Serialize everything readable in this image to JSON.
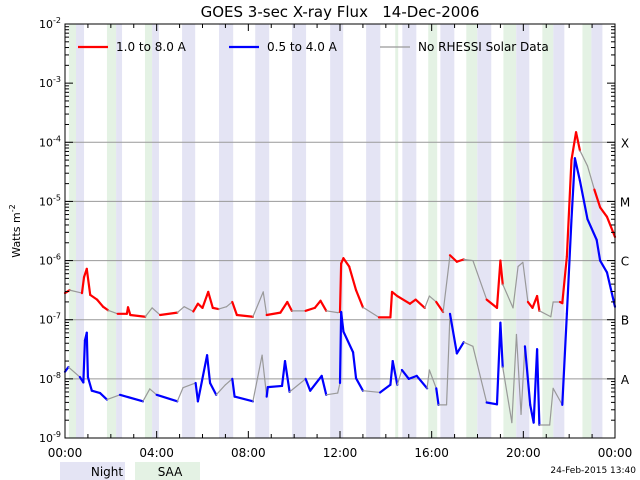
{
  "chart_data": {
    "type": "line",
    "title": "GOES 3-sec X-ray Flux   14-Dec-2006",
    "ylabel": "Watts m",
    "ylabel_sup": "-2",
    "yscale": "log",
    "ylim_exp": [
      -9,
      -2
    ],
    "y_ticks": [
      {
        "base": "10",
        "exp": "-2",
        "v": -2
      },
      {
        "base": "10",
        "exp": "-3",
        "v": -3
      },
      {
        "base": "10",
        "exp": "-4",
        "v": -4
      },
      {
        "base": "10",
        "exp": "-5",
        "v": -5
      },
      {
        "base": "10",
        "exp": "-6",
        "v": -6
      },
      {
        "base": "10",
        "exp": "-7",
        "v": -7
      },
      {
        "base": "10",
        "exp": "-8",
        "v": -8
      },
      {
        "base": "10",
        "exp": "-9",
        "v": -9
      }
    ],
    "xlim_hours": [
      0,
      24
    ],
    "x_ticks": [
      {
        "label": "00:00",
        "h": 0
      },
      {
        "label": "04:00",
        "h": 4
      },
      {
        "label": "08:00",
        "h": 8
      },
      {
        "label": "12:00",
        "h": 12
      },
      {
        "label": "16:00",
        "h": 16
      },
      {
        "label": "20:00",
        "h": 20
      },
      {
        "label": "00:00",
        "h": 24
      }
    ],
    "class_labels": [
      {
        "label": "X",
        "v": -4
      },
      {
        "label": "M",
        "v": -5
      },
      {
        "label": "C",
        "v": -6
      },
      {
        "label": "B",
        "v": -7
      },
      {
        "label": "A",
        "v": -8
      }
    ],
    "legend": [
      {
        "label": "1.0 to 8.0 A",
        "color": "#ff0000"
      },
      {
        "label": "0.5 to 4.0 A",
        "color": "#0000ff"
      },
      {
        "label": "No RHESSI Solar Data",
        "color": "#999999"
      }
    ],
    "legend_placement": "top",
    "no_data_color": "#999999",
    "series": [
      {
        "name": "1.0 to 8.0 A",
        "color": "#ff0000",
        "points_hour_log10_colored": [
          [
            0,
            -6.55,
            1
          ],
          [
            0.2,
            -6.5,
            0
          ],
          [
            0.74,
            -6.55,
            1
          ],
          [
            0.83,
            -6.28,
            1
          ],
          [
            0.95,
            -6.14,
            1
          ],
          [
            1.1,
            -6.58,
            1
          ],
          [
            1.4,
            -6.66,
            1
          ],
          [
            1.66,
            -6.78,
            1
          ],
          [
            1.88,
            -6.84,
            0
          ],
          [
            2.3,
            -6.9,
            1
          ],
          [
            2.7,
            -6.9,
            1
          ],
          [
            2.75,
            -6.79,
            1
          ],
          [
            2.85,
            -6.92,
            1
          ],
          [
            3.5,
            -6.95,
            0
          ],
          [
            3.8,
            -6.8,
            0
          ],
          [
            4.15,
            -6.92,
            1
          ],
          [
            4.9,
            -6.88,
            0
          ],
          [
            5.2,
            -6.78,
            0
          ],
          [
            5.6,
            -6.86,
            1
          ],
          [
            5.8,
            -6.73,
            1
          ],
          [
            6.0,
            -6.8,
            1
          ],
          [
            6.25,
            -6.53,
            1
          ],
          [
            6.45,
            -6.8,
            1
          ],
          [
            6.7,
            -6.82,
            0
          ],
          [
            7.05,
            -6.78,
            0
          ],
          [
            7.3,
            -6.7,
            1
          ],
          [
            7.5,
            -6.92,
            1
          ],
          [
            8.2,
            -6.95,
            0
          ],
          [
            8.65,
            -6.53,
            0
          ],
          [
            8.8,
            -6.92,
            1
          ],
          [
            9.4,
            -6.88,
            1
          ],
          [
            9.7,
            -6.7,
            1
          ],
          [
            9.9,
            -6.85,
            0
          ],
          [
            10.5,
            -6.85,
            1
          ],
          [
            10.9,
            -6.8,
            1
          ],
          [
            11.15,
            -6.68,
            1
          ],
          [
            11.4,
            -6.85,
            0
          ],
          [
            11.9,
            -6.88,
            0
          ],
          [
            12.0,
            -6.87,
            1
          ],
          [
            12.05,
            -6.05,
            1
          ],
          [
            12.15,
            -5.96,
            1
          ],
          [
            12.4,
            -6.1,
            1
          ],
          [
            12.7,
            -6.5,
            1
          ],
          [
            13.0,
            -6.79,
            0
          ],
          [
            13.7,
            -6.96,
            1
          ],
          [
            14.2,
            -6.96,
            1
          ],
          [
            14.27,
            -6.53,
            1
          ],
          [
            14.5,
            -6.6,
            1
          ],
          [
            15.05,
            -6.73,
            1
          ],
          [
            15.3,
            -6.66,
            1
          ],
          [
            15.7,
            -6.8,
            0
          ],
          [
            15.9,
            -6.6,
            0
          ],
          [
            16.2,
            -6.7,
            1
          ],
          [
            16.5,
            -6.87,
            0
          ],
          [
            16.8,
            -5.91,
            1
          ],
          [
            17.1,
            -6.02,
            1
          ],
          [
            17.4,
            -5.98,
            0
          ],
          [
            17.8,
            -6.0,
            0
          ],
          [
            18.4,
            -6.66,
            1
          ],
          [
            18.85,
            -6.8,
            1
          ],
          [
            19.0,
            -6.0,
            1
          ],
          [
            19.1,
            -6.4,
            0
          ],
          [
            19.55,
            -6.8,
            0
          ],
          [
            19.77,
            -6.1,
            0
          ],
          [
            19.98,
            -6.03,
            0
          ],
          [
            20.2,
            -6.7,
            1
          ],
          [
            20.4,
            -6.8,
            1
          ],
          [
            20.6,
            -6.6,
            1
          ],
          [
            20.7,
            -6.85,
            0
          ],
          [
            21.2,
            -6.95,
            0
          ],
          [
            21.3,
            -6.7,
            0
          ],
          [
            21.6,
            -6.7,
            1
          ],
          [
            21.7,
            -6.72,
            1
          ],
          [
            21.9,
            -5.93,
            1
          ],
          [
            22.1,
            -4.3,
            1
          ],
          [
            22.3,
            -3.83,
            1
          ],
          [
            22.47,
            -4.14,
            0
          ],
          [
            22.8,
            -4.4,
            0
          ],
          [
            23.1,
            -4.8,
            1
          ],
          [
            23.35,
            -5.1,
            1
          ],
          [
            23.65,
            -5.26,
            1
          ],
          [
            24,
            -5.6,
            1
          ]
        ]
      },
      {
        "name": "0.5 to 4.0 A",
        "color": "#0000ff",
        "points_hour_log10_colored": [
          [
            0,
            -7.88,
            1
          ],
          [
            0.15,
            -7.8,
            0
          ],
          [
            0.65,
            -7.97,
            1
          ],
          [
            0.8,
            -8.06,
            1
          ],
          [
            0.87,
            -7.35,
            1
          ],
          [
            0.95,
            -7.22,
            1
          ],
          [
            1.0,
            -7.97,
            1
          ],
          [
            1.17,
            -8.2,
            1
          ],
          [
            1.53,
            -8.24,
            1
          ],
          [
            1.83,
            -8.35,
            0
          ],
          [
            2.4,
            -8.27,
            1
          ],
          [
            3.4,
            -8.38,
            0
          ],
          [
            3.7,
            -8.17,
            0
          ],
          [
            4.0,
            -8.27,
            1
          ],
          [
            4.9,
            -8.38,
            0
          ],
          [
            5.15,
            -8.15,
            0
          ],
          [
            5.7,
            -8.07,
            1
          ],
          [
            5.8,
            -8.38,
            1
          ],
          [
            6.2,
            -7.6,
            1
          ],
          [
            6.33,
            -8.07,
            1
          ],
          [
            6.6,
            -8.27,
            0
          ],
          [
            7.0,
            -8.1,
            0
          ],
          [
            7.3,
            -8.0,
            1
          ],
          [
            7.4,
            -8.3,
            1
          ],
          [
            8.2,
            -8.38,
            0
          ],
          [
            8.6,
            -7.6,
            0
          ],
          [
            8.8,
            -8.3,
            1
          ],
          [
            8.85,
            -8.14,
            1
          ],
          [
            9.47,
            -8.12,
            1
          ],
          [
            9.6,
            -7.7,
            1
          ],
          [
            9.8,
            -8.22,
            0
          ],
          [
            10.5,
            -8.0,
            1
          ],
          [
            10.7,
            -8.2,
            1
          ],
          [
            11.2,
            -7.95,
            1
          ],
          [
            11.4,
            -8.27,
            0
          ],
          [
            11.9,
            -8.24,
            0
          ],
          [
            12.0,
            -8.07,
            1
          ],
          [
            12.05,
            -6.87,
            1
          ],
          [
            12.15,
            -7.2,
            1
          ],
          [
            12.57,
            -7.55,
            1
          ],
          [
            12.7,
            -7.99,
            1
          ],
          [
            13.0,
            -8.2,
            0
          ],
          [
            13.75,
            -8.23,
            1
          ],
          [
            14.2,
            -8.1,
            1
          ],
          [
            14.3,
            -7.7,
            1
          ],
          [
            14.5,
            -8.1,
            0
          ],
          [
            14.7,
            -7.85,
            1
          ],
          [
            15.0,
            -8.0,
            1
          ],
          [
            15.35,
            -7.95,
            1
          ],
          [
            15.8,
            -8.16,
            0
          ],
          [
            15.9,
            -7.85,
            0
          ],
          [
            16.2,
            -8.16,
            1
          ],
          [
            16.3,
            -8.44,
            0
          ],
          [
            16.65,
            -8.44,
            0
          ],
          [
            16.8,
            -6.9,
            1
          ],
          [
            17.1,
            -7.57,
            1
          ],
          [
            17.4,
            -7.38,
            0
          ],
          [
            17.8,
            -7.45,
            0
          ],
          [
            18.4,
            -8.4,
            1
          ],
          [
            18.85,
            -8.43,
            1
          ],
          [
            19.0,
            -7.05,
            1
          ],
          [
            19.1,
            -7.8,
            0
          ],
          [
            19.5,
            -8.74,
            0
          ],
          [
            19.7,
            -7.25,
            0
          ],
          [
            19.9,
            -8.6,
            0
          ],
          [
            20.07,
            -7.45,
            1
          ],
          [
            20.3,
            -8.44,
            1
          ],
          [
            20.45,
            -8.74,
            1
          ],
          [
            20.6,
            -7.5,
            1
          ],
          [
            20.7,
            -8.78,
            0
          ],
          [
            21.15,
            -8.78,
            0
          ],
          [
            21.3,
            -8.16,
            0
          ],
          [
            21.7,
            -8.44,
            1
          ],
          [
            21.9,
            -6.9,
            1
          ],
          [
            22.1,
            -5.31,
            1
          ],
          [
            22.25,
            -4.27,
            1
          ],
          [
            22.47,
            -4.65,
            1
          ],
          [
            22.8,
            -5.3,
            1
          ],
          [
            23.2,
            -5.65,
            1
          ],
          [
            23.35,
            -6.0,
            1
          ],
          [
            23.65,
            -6.2,
            1
          ],
          [
            24,
            -6.78,
            1
          ]
        ]
      }
    ],
    "bands": {
      "night": {
        "label": "Night",
        "color": "#e4e4f4",
        "hours": [
          [
            0.48,
            0.83
          ],
          [
            2.23,
            2.49
          ],
          [
            3.8,
            4.1
          ],
          [
            5.11,
            5.68
          ],
          [
            6.72,
            7.34
          ],
          [
            8.3,
            8.91
          ],
          [
            9.91,
            10.52
          ],
          [
            11.57,
            12.14
          ],
          [
            13.14,
            13.76
          ],
          [
            14.72,
            15.33
          ],
          [
            16.38,
            16.99
          ],
          [
            17.99,
            18.6
          ],
          [
            19.69,
            20.26
          ],
          [
            21.31,
            21.79
          ],
          [
            22.97,
            23.45
          ]
        ]
      },
      "saa": {
        "label": "SAA",
        "color": "#e4f2e4",
        "hours": [
          [
            0.17,
            0.48
          ],
          [
            1.83,
            2.23
          ],
          [
            3.49,
            3.8
          ],
          [
            14.41,
            14.54
          ],
          [
            15.85,
            16.24
          ],
          [
            17.51,
            17.99
          ],
          [
            19.13,
            19.69
          ],
          [
            20.83,
            21.31
          ],
          [
            22.58,
            22.97
          ]
        ]
      }
    }
  },
  "footer": {
    "night_label": "Night",
    "saa_label": "SAA",
    "timestamp": "24-Feb-2015 13:40"
  }
}
